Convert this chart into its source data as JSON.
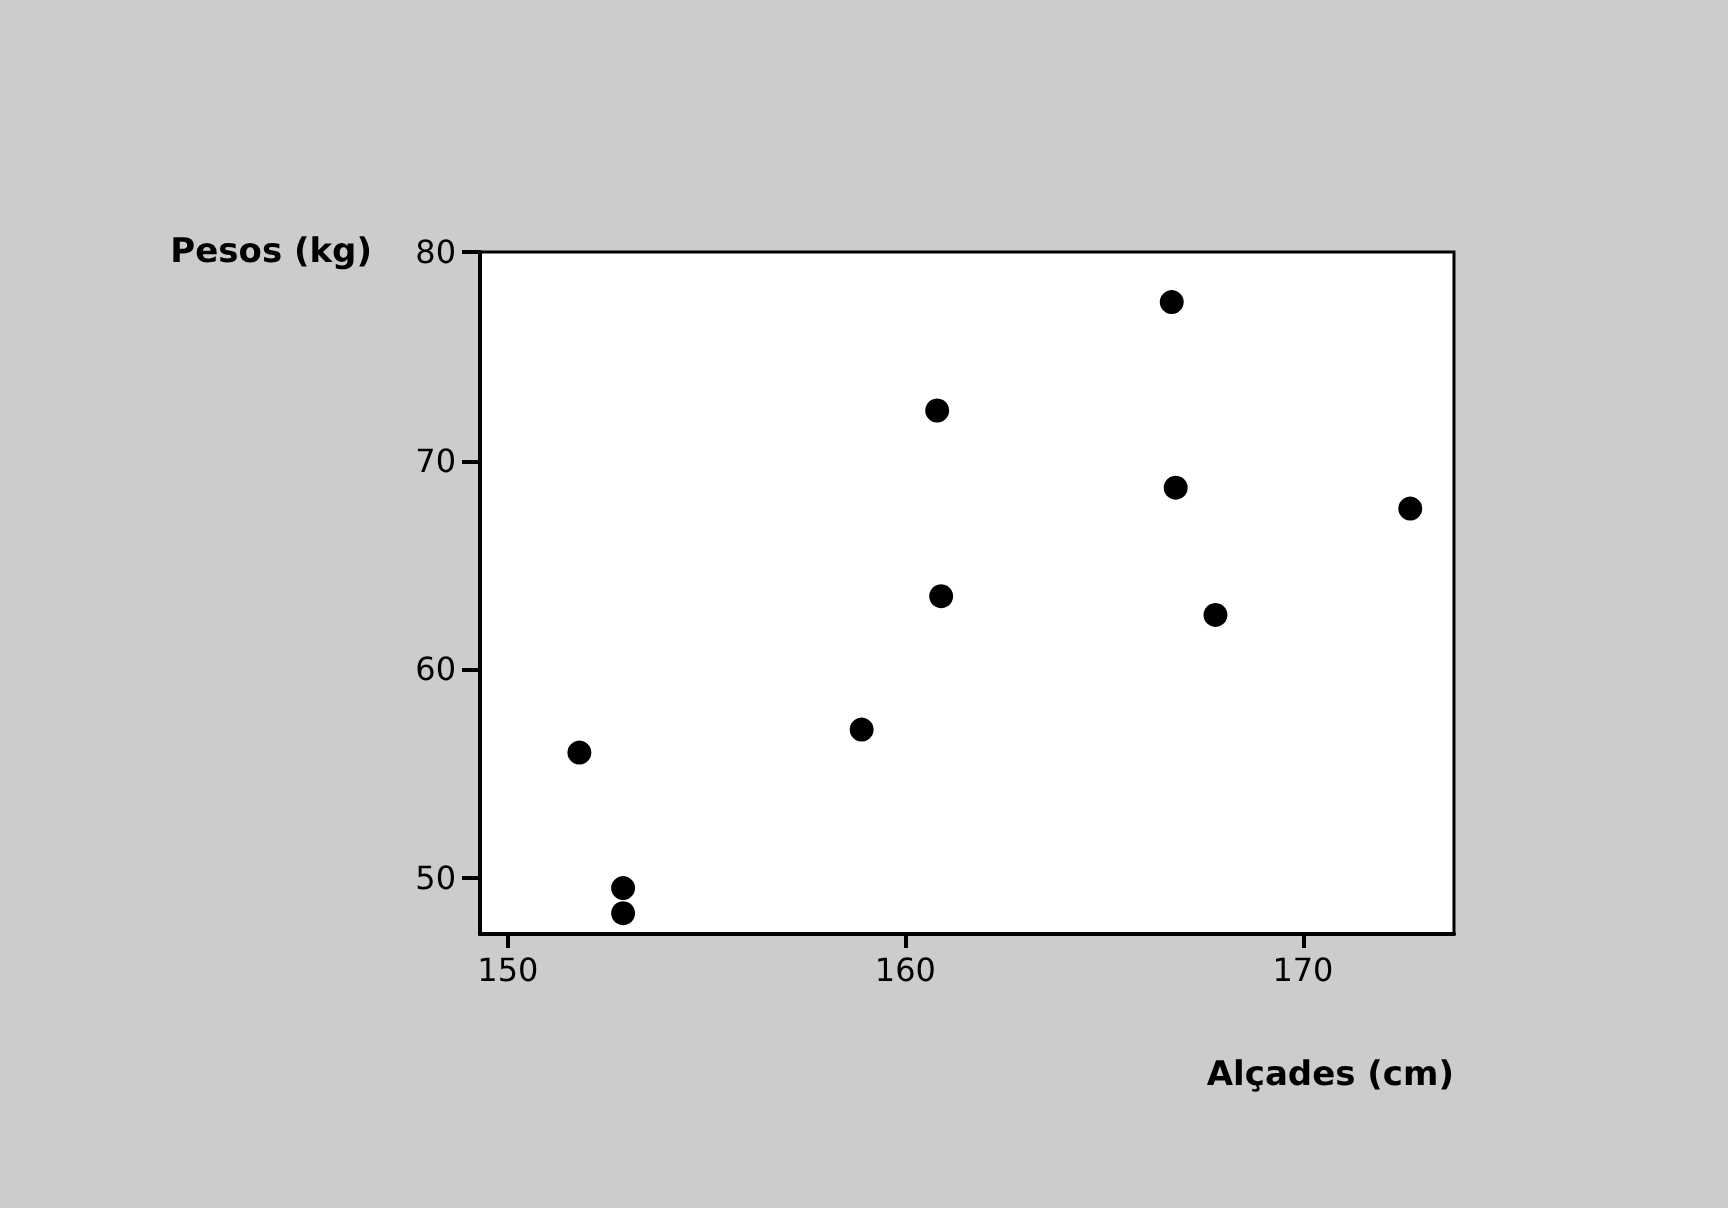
{
  "chart_data": {
    "type": "scatter",
    "xlabel": "Alçades (cm)",
    "ylabel": "Pesos (kg)",
    "x": [
      151.8,
      152.9,
      152.9,
      158.9,
      160.8,
      160.9,
      166.7,
      166.8,
      167.8,
      172.7
    ],
    "series": [
      {
        "color": "#000000",
        "values": [
          56.0,
          49.5,
          48.3,
          57.1,
          72.4,
          63.5,
          77.6,
          68.7,
          62.6,
          67.7
        ]
      }
    ],
    "xlim": [
      149.3,
      173.8
    ],
    "xticks": [
      150,
      160,
      170
    ],
    "ylim": [
      47.3,
      80
    ],
    "yticks": [
      50,
      60,
      70,
      80
    ],
    "grid": false,
    "marker": "circle"
  }
}
